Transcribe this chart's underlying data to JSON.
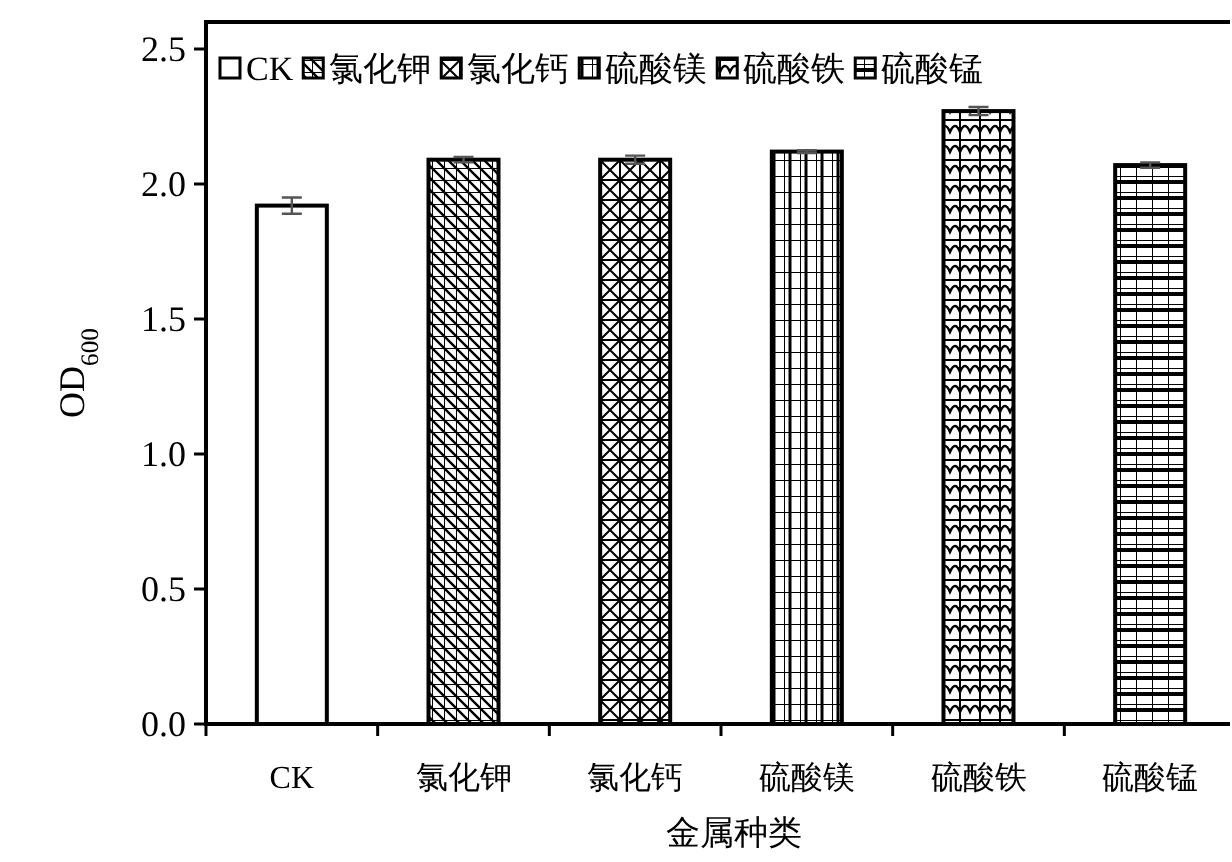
{
  "chart_data": {
    "type": "bar",
    "xlabel": "金属种类",
    "ylabel": "OD$_{600}$",
    "categories": [
      "CK",
      "氯化钾",
      "氯化钙",
      "硫酸镁",
      "硫酸铁",
      "硫酸锰"
    ],
    "series": [
      {
        "name": "CK",
        "color": "#ffffff",
        "values": [
          1.92,
          null,
          null,
          null,
          null,
          null
        ],
        "errors": [
          0.03,
          null,
          null,
          null,
          null,
          null
        ]
      },
      {
        "name": "氯化钾",
        "color": "#000000",
        "values": [
          null,
          2.09,
          null,
          null,
          null,
          null
        ],
        "errors": [
          null,
          0.01,
          null,
          null,
          null,
          null
        ]
      },
      {
        "name": "氯化钙",
        "color": "#000000",
        "values": [
          null,
          null,
          2.09,
          null,
          null,
          null
        ],
        "errors": [
          null,
          null,
          0.015,
          null,
          null,
          null
        ]
      },
      {
        "name": "硫酸镁",
        "color": "#000000",
        "values": [
          null,
          null,
          null,
          2.12,
          null,
          null
        ],
        "errors": [
          null,
          null,
          null,
          0.005,
          null,
          null
        ]
      },
      {
        "name": "硫酸铁",
        "color": "#000000",
        "values": [
          null,
          null,
          null,
          null,
          2.27,
          null
        ],
        "errors": [
          null,
          null,
          null,
          null,
          0.015,
          null
        ]
      },
      {
        "name": "硫酸锰",
        "color": "#000000",
        "values": [
          null,
          null,
          null,
          null,
          null,
          2.07
        ],
        "errors": [
          null,
          null,
          null,
          null,
          null,
          0.01
        ]
      }
    ],
    "ylim": [
      0,
      2.6
    ],
    "yticks": [
      {
        "value": 0,
        "label": "0.0"
      },
      {
        "value": 0.5,
        "label": "0.5"
      },
      {
        "value": 1,
        "label": "1.0"
      },
      {
        "value": 1.5,
        "label": "1.5"
      },
      {
        "value": 2,
        "label": "2.0"
      },
      {
        "value": 2.5,
        "label": "2.5"
      }
    ],
    "grid": false,
    "legend": "top"
  }
}
